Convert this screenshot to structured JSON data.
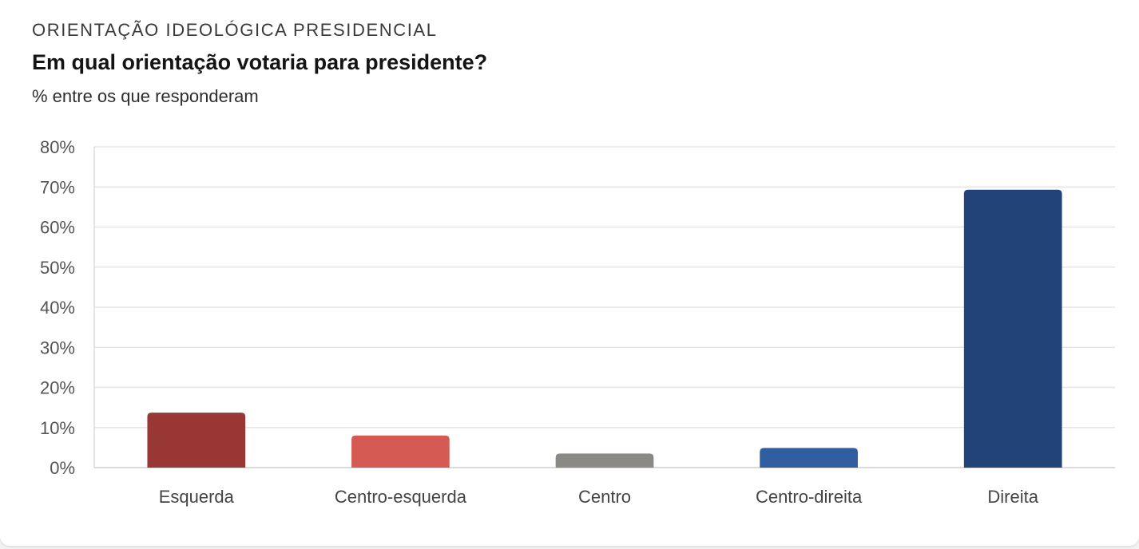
{
  "header": {
    "kicker": "ORIENTAÇÃO IDEOLÓGICA PRESIDENCIAL",
    "title": "Em qual orientação votaria para presidente?",
    "subtitle": "% entre os que responderam"
  },
  "chart_data": {
    "type": "bar",
    "title": "Em qual orientação votaria para presidente?",
    "xlabel": "",
    "ylabel": "% entre os que responderam",
    "categories": [
      "Esquerda",
      "Centro-esquerda",
      "Centro",
      "Centro-direita",
      "Direita"
    ],
    "values": [
      13.7,
      8.0,
      3.5,
      4.9,
      69.3
    ],
    "colors": [
      "#983733",
      "#d45a53",
      "#8a8985",
      "#2f5d9f",
      "#214377"
    ],
    "ylim": [
      0,
      80
    ],
    "yticks": [
      0,
      10,
      20,
      30,
      40,
      50,
      60,
      70,
      80
    ],
    "ytick_suffix": "%",
    "grid": true,
    "legend": "none"
  }
}
